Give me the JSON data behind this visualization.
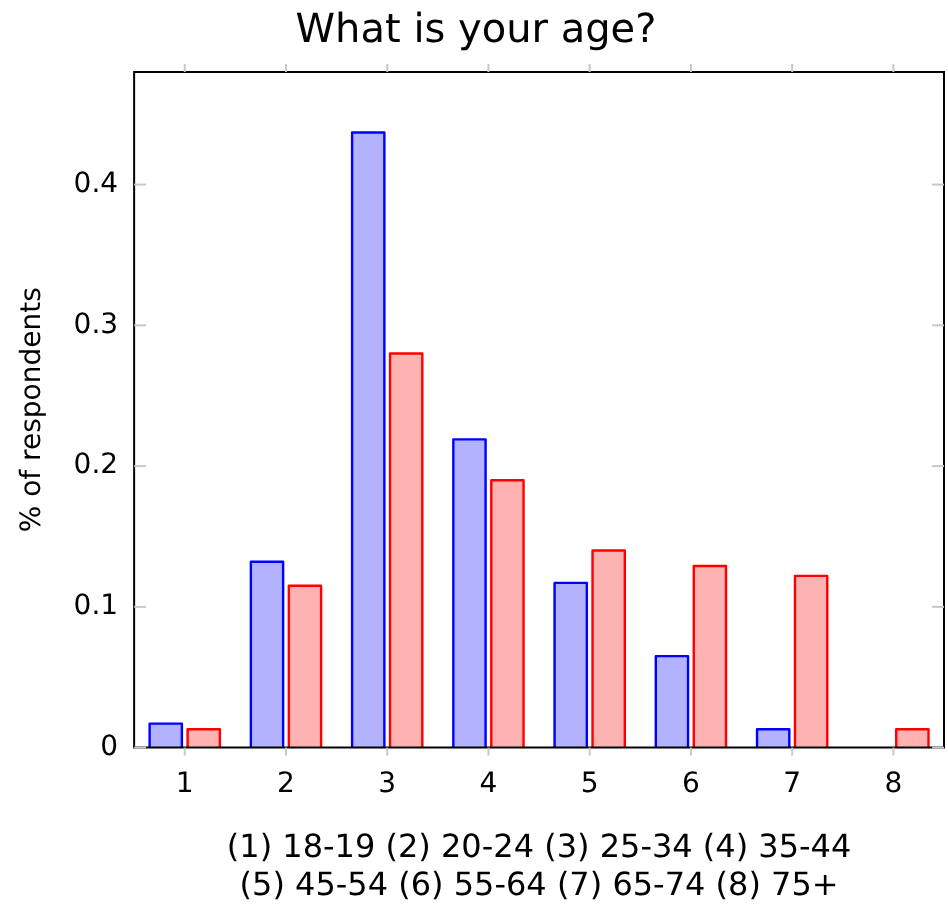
{
  "chart_data": {
    "type": "bar",
    "title": "What is your age?",
    "xlabel": "(1) 18-19 (2) 20-24 (3) 25-34 (4) 35-44 (5) 45-54 (6) 55-64 (7) 65-74 (8) 75+",
    "ylabel": "% of respondents",
    "categories": [
      "1",
      "2",
      "3",
      "4",
      "5",
      "6",
      "7",
      "8"
    ],
    "series": [
      {
        "color": "#0000ff",
        "values": [
          0.017,
          0.132,
          0.437,
          0.219,
          0.117,
          0.065,
          0.013,
          0
        ]
      },
      {
        "color": "#ff0000",
        "values": [
          0.013,
          0.115,
          0.28,
          0.19,
          0.14,
          0.129,
          0.122,
          0.013
        ]
      }
    ],
    "ylim": [
      0,
      0.48
    ],
    "yticks": [
      0,
      0.1,
      0.2,
      0.3,
      0.4
    ],
    "grid": false,
    "legend": false
  }
}
